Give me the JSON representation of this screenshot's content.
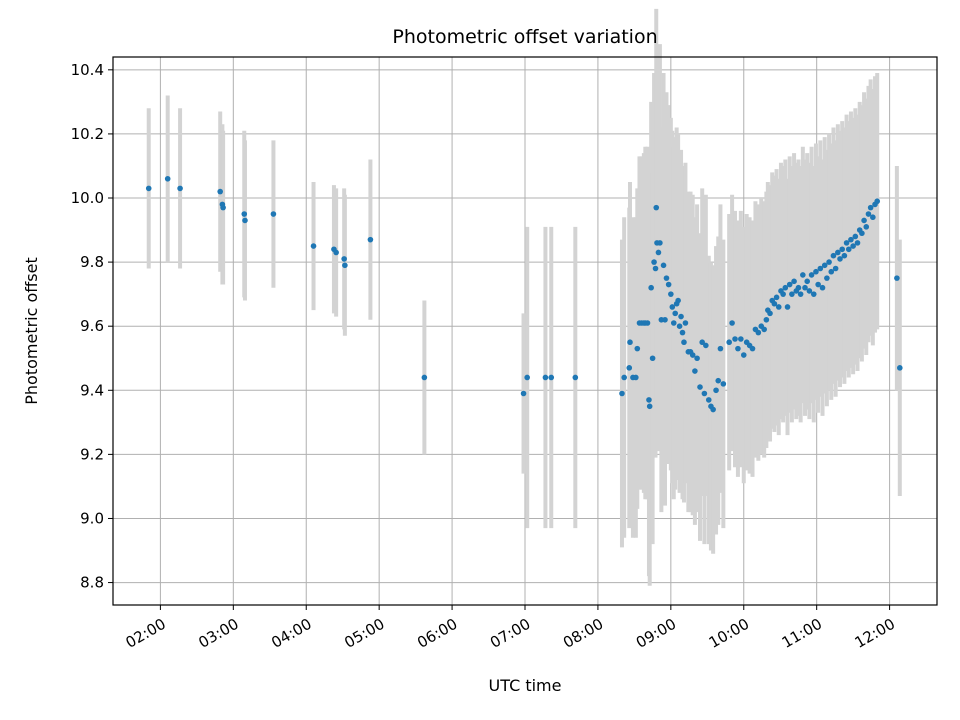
{
  "chart_data": {
    "type": "scatter",
    "title": "Photometric offset variation",
    "xlabel": "UTC time",
    "ylabel": "Photometric offset",
    "x_tick_labels": [
      "02:00",
      "03:00",
      "04:00",
      "05:00",
      "06:00",
      "07:00",
      "08:00",
      "09:00",
      "10:00",
      "11:00",
      "12:00"
    ],
    "y_tick_labels": [
      "8.8",
      "9.0",
      "9.2",
      "9.4",
      "9.6",
      "9.8",
      "10.0",
      "10.2",
      "10.4"
    ],
    "x_ticks_hours": [
      2,
      3,
      4,
      5,
      6,
      7,
      8,
      9,
      10,
      11,
      12
    ],
    "y_ticks": [
      8.8,
      9.0,
      9.2,
      9.4,
      9.6,
      9.8,
      10.0,
      10.2,
      10.4
    ],
    "xlim_hours": [
      1.35,
      12.65
    ],
    "ylim": [
      8.73,
      10.44
    ],
    "grid": true,
    "point_color": "#1f77b4",
    "errorbar_color": "#d3d3d3",
    "series": [
      {
        "points_hours": [
          [
            1.84,
            10.03,
            0.25
          ],
          [
            2.1,
            10.06,
            0.26
          ],
          [
            2.27,
            10.03,
            0.25
          ],
          [
            2.82,
            10.02,
            0.25
          ],
          [
            2.85,
            9.98,
            0.25
          ],
          [
            2.86,
            9.97,
            0.24
          ],
          [
            3.15,
            9.95,
            0.26
          ],
          [
            3.16,
            9.93,
            0.25
          ],
          [
            3.55,
            9.95,
            0.23
          ],
          [
            4.1,
            9.85,
            0.2
          ],
          [
            4.38,
            9.84,
            0.2
          ],
          [
            4.41,
            9.83,
            0.2
          ],
          [
            4.52,
            9.81,
            0.22
          ],
          [
            4.53,
            9.79,
            0.22
          ],
          [
            4.88,
            9.87,
            0.25
          ],
          [
            5.62,
            9.44,
            0.24
          ],
          [
            6.98,
            9.39,
            0.25
          ],
          [
            7.03,
            9.44,
            0.47
          ],
          [
            7.28,
            9.44,
            0.47
          ],
          [
            7.36,
            9.44,
            0.47
          ],
          [
            7.69,
            9.44,
            0.47
          ],
          [
            8.33,
            9.39,
            0.48
          ],
          [
            8.36,
            9.44,
            0.5
          ],
          [
            8.43,
            9.47,
            0.5
          ],
          [
            8.44,
            9.55,
            0.5
          ],
          [
            8.48,
            9.44,
            0.5
          ],
          [
            8.52,
            9.44,
            0.5
          ],
          [
            8.54,
            9.53,
            0.5
          ],
          [
            8.57,
            9.61,
            0.52
          ],
          [
            8.6,
            9.61,
            0.52
          ],
          [
            8.63,
            9.61,
            0.53
          ],
          [
            8.65,
            9.61,
            0.55
          ],
          [
            8.68,
            9.61,
            0.55
          ],
          [
            8.7,
            9.37,
            0.55
          ],
          [
            8.71,
            9.35,
            0.56
          ],
          [
            8.73,
            9.72,
            0.58
          ],
          [
            8.75,
            9.5,
            0.58
          ],
          [
            8.77,
            9.8,
            0.59
          ],
          [
            8.79,
            9.78,
            0.59
          ],
          [
            8.8,
            9.97,
            0.62
          ],
          [
            8.81,
            9.86,
            0.6
          ],
          [
            8.83,
            9.83,
            0.62
          ],
          [
            8.85,
            9.86,
            0.62
          ],
          [
            8.87,
            9.62,
            0.6
          ],
          [
            8.9,
            9.79,
            0.6
          ],
          [
            8.92,
            9.62,
            0.58
          ],
          [
            8.94,
            9.75,
            0.58
          ],
          [
            8.97,
            9.73,
            0.56
          ],
          [
            9.0,
            9.7,
            0.55
          ],
          [
            9.02,
            9.66,
            0.55
          ],
          [
            9.04,
            9.61,
            0.55
          ],
          [
            9.06,
            9.64,
            0.55
          ],
          [
            9.08,
            9.67,
            0.55
          ],
          [
            9.1,
            9.68,
            0.52
          ],
          [
            9.12,
            9.6,
            0.52
          ],
          [
            9.14,
            9.63,
            0.52
          ],
          [
            9.16,
            9.58,
            0.52
          ],
          [
            9.18,
            9.55,
            0.5
          ],
          [
            9.2,
            9.61,
            0.5
          ],
          [
            9.24,
            9.52,
            0.5
          ],
          [
            9.27,
            9.52,
            0.5
          ],
          [
            9.3,
            9.51,
            0.5
          ],
          [
            9.33,
            9.46,
            0.48
          ],
          [
            9.36,
            9.5,
            0.48
          ],
          [
            9.4,
            9.41,
            0.48
          ],
          [
            9.43,
            9.55,
            0.48
          ],
          [
            9.46,
            9.39,
            0.47
          ],
          [
            9.48,
            9.54,
            0.47
          ],
          [
            9.52,
            9.37,
            0.45
          ],
          [
            9.55,
            9.35,
            0.45
          ],
          [
            9.58,
            9.34,
            0.45
          ],
          [
            9.62,
            9.4,
            0.45
          ],
          [
            9.65,
            9.43,
            0.45
          ],
          [
            9.68,
            9.53,
            0.45
          ],
          [
            9.72,
            9.42,
            0.45
          ],
          [
            9.8,
            9.55,
            0.4
          ],
          [
            9.84,
            9.61,
            0.4
          ],
          [
            9.88,
            9.56,
            0.4
          ],
          [
            9.92,
            9.53,
            0.4
          ],
          [
            9.96,
            9.56,
            0.4
          ],
          [
            10.0,
            9.51,
            0.4
          ],
          [
            10.04,
            9.55,
            0.4
          ],
          [
            10.08,
            9.54,
            0.4
          ],
          [
            10.12,
            9.53,
            0.4
          ],
          [
            10.16,
            9.59,
            0.4
          ],
          [
            10.2,
            9.58,
            0.4
          ],
          [
            10.24,
            9.6,
            0.4
          ],
          [
            10.28,
            9.59,
            0.4
          ],
          [
            10.31,
            9.62,
            0.4
          ],
          [
            10.33,
            9.65,
            0.4
          ],
          [
            10.36,
            9.64,
            0.4
          ],
          [
            10.39,
            9.68,
            0.4
          ],
          [
            10.42,
            9.67,
            0.4
          ],
          [
            10.45,
            9.69,
            0.4
          ],
          [
            10.48,
            9.66,
            0.4
          ],
          [
            10.51,
            9.71,
            0.4
          ],
          [
            10.54,
            9.7,
            0.4
          ],
          [
            10.57,
            9.72,
            0.4
          ],
          [
            10.6,
            9.66,
            0.4
          ],
          [
            10.63,
            9.73,
            0.4
          ],
          [
            10.66,
            9.7,
            0.4
          ],
          [
            10.69,
            9.74,
            0.4
          ],
          [
            10.72,
            9.71,
            0.4
          ],
          [
            10.75,
            9.72,
            0.4
          ],
          [
            10.78,
            9.7,
            0.4
          ],
          [
            10.81,
            9.76,
            0.4
          ],
          [
            10.84,
            9.72,
            0.4
          ],
          [
            10.87,
            9.74,
            0.4
          ],
          [
            10.9,
            9.71,
            0.4
          ],
          [
            10.93,
            9.76,
            0.4
          ],
          [
            10.96,
            9.7,
            0.4
          ],
          [
            10.99,
            9.77,
            0.4
          ],
          [
            11.02,
            9.73,
            0.4
          ],
          [
            11.05,
            9.78,
            0.4
          ],
          [
            11.08,
            9.72,
            0.4
          ],
          [
            11.11,
            9.79,
            0.4
          ],
          [
            11.14,
            9.75,
            0.4
          ],
          [
            11.17,
            9.8,
            0.4
          ],
          [
            11.2,
            9.77,
            0.4
          ],
          [
            11.23,
            9.82,
            0.4
          ],
          [
            11.26,
            9.78,
            0.4
          ],
          [
            11.29,
            9.83,
            0.4
          ],
          [
            11.32,
            9.81,
            0.4
          ],
          [
            11.35,
            9.84,
            0.4
          ],
          [
            11.38,
            9.82,
            0.4
          ],
          [
            11.41,
            9.86,
            0.4
          ],
          [
            11.44,
            9.84,
            0.4
          ],
          [
            11.47,
            9.87,
            0.4
          ],
          [
            11.5,
            9.85,
            0.4
          ],
          [
            11.53,
            9.88,
            0.4
          ],
          [
            11.56,
            9.86,
            0.4
          ],
          [
            11.59,
            9.9,
            0.4
          ],
          [
            11.62,
            9.89,
            0.4
          ],
          [
            11.65,
            9.93,
            0.4
          ],
          [
            11.68,
            9.91,
            0.4
          ],
          [
            11.71,
            9.95,
            0.4
          ],
          [
            11.74,
            9.97,
            0.4
          ],
          [
            11.77,
            9.94,
            0.4
          ],
          [
            11.8,
            9.98,
            0.4
          ],
          [
            11.83,
            9.99,
            0.4
          ],
          [
            12.1,
            9.75,
            0.35
          ],
          [
            12.14,
            9.47,
            0.4
          ]
        ]
      }
    ]
  }
}
